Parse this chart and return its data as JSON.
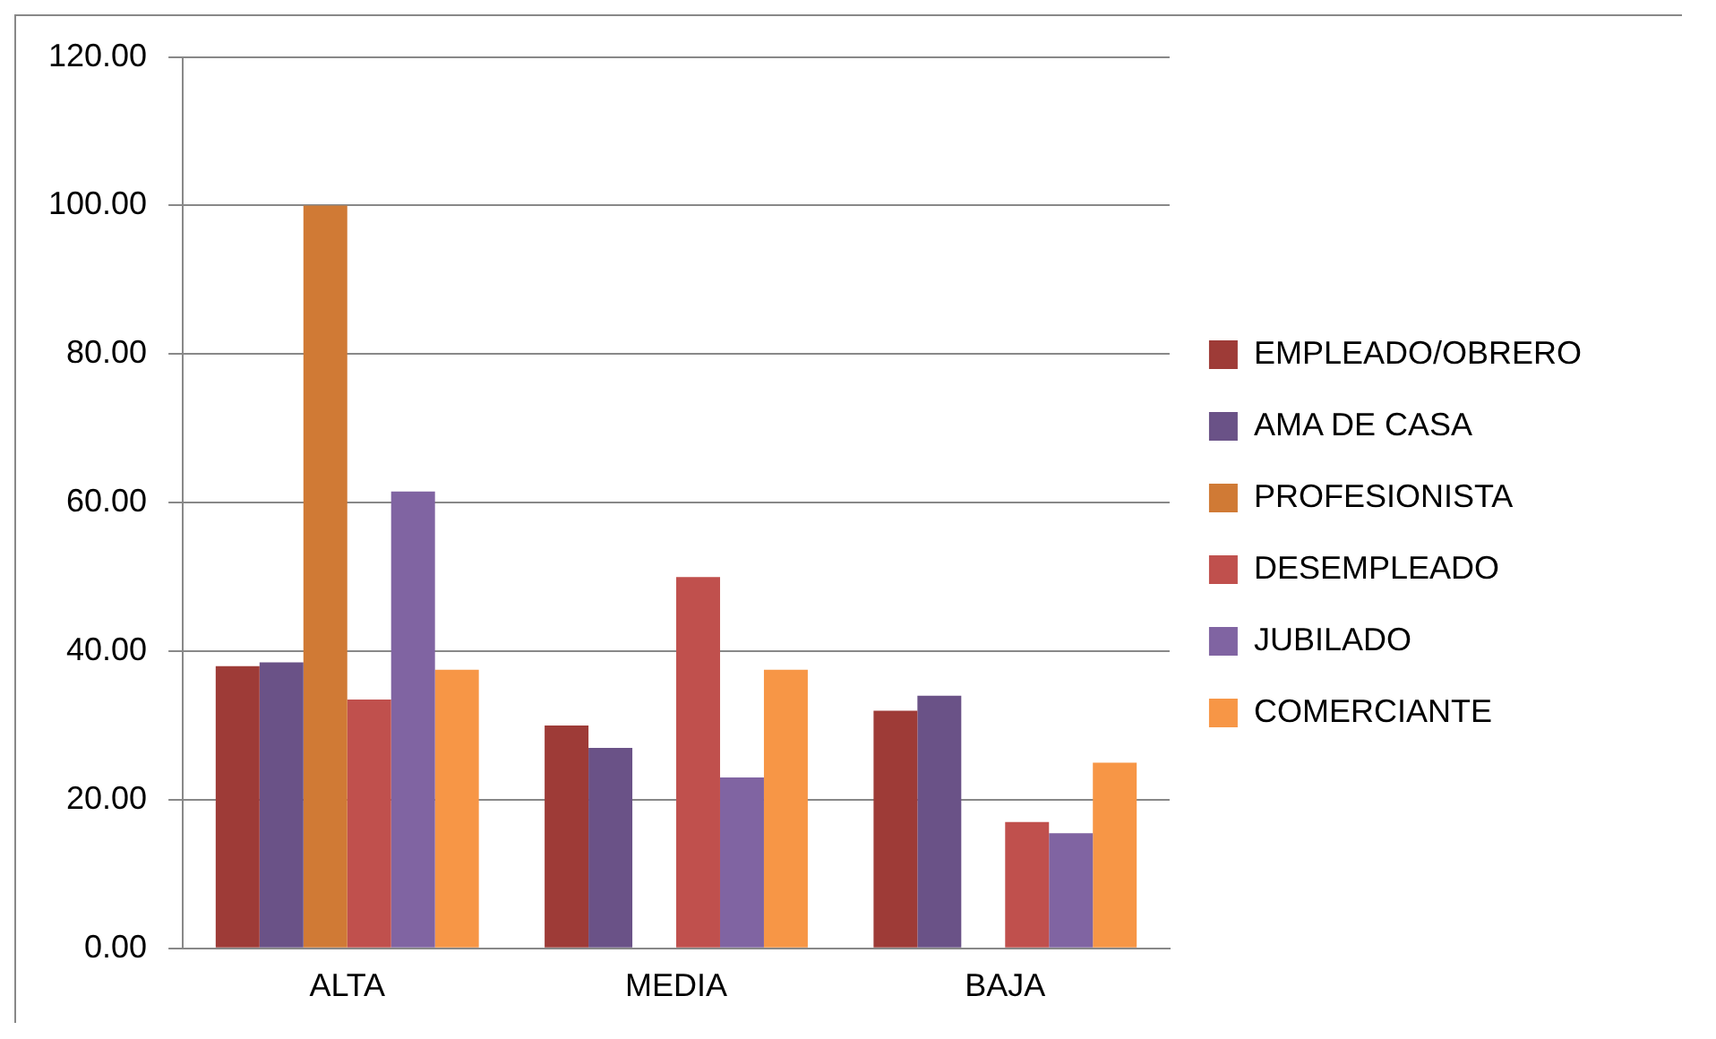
{
  "chart_data": {
    "type": "bar",
    "categories": [
      "ALTA",
      "MEDIA",
      "BAJA"
    ],
    "series": [
      {
        "name": "EMPLEADO/OBRERO",
        "color": "#9e3b37",
        "values": [
          38,
          30,
          32
        ]
      },
      {
        "name": "AMA DE CASA",
        "color": "#6a5287",
        "values": [
          38.5,
          27,
          34
        ]
      },
      {
        "name": "PROFESIONISTA",
        "color": "#d07a35",
        "values": [
          100,
          null,
          null
        ]
      },
      {
        "name": "DESEMPLEADO",
        "color": "#c0504d",
        "values": [
          33.5,
          50,
          17
        ]
      },
      {
        "name": "JUBILADO",
        "color": "#8064a2",
        "values": [
          61.5,
          23,
          15.5
        ]
      },
      {
        "name": "COMERCIANTE",
        "color": "#f79646",
        "values": [
          37.5,
          37.5,
          25
        ]
      }
    ],
    "ylim": [
      0,
      120
    ],
    "yticks": [
      {
        "value": 0,
        "label": "0.00"
      },
      {
        "value": 20,
        "label": "20.00"
      },
      {
        "value": 40,
        "label": "40.00"
      },
      {
        "value": 60,
        "label": "60.00"
      },
      {
        "value": 80,
        "label": "80.00"
      },
      {
        "value": 100,
        "label": "100.00"
      },
      {
        "value": 120,
        "label": "120.00"
      }
    ],
    "grid": "y",
    "legend": "right"
  }
}
